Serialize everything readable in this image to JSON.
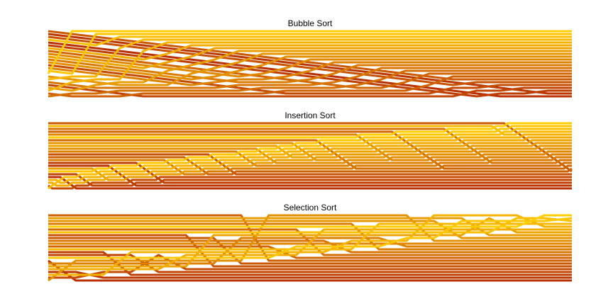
{
  "figure": {
    "panels": [
      {
        "id": "bubble",
        "title": "Bubble Sort",
        "algorithm": "bubble"
      },
      {
        "id": "insertion",
        "title": "Insertion Sort",
        "algorithm": "insertion"
      },
      {
        "id": "selection",
        "title": "Selection Sort",
        "algorithm": "selection"
      }
    ],
    "element_count": 24,
    "color_scale": {
      "low": "#b83000",
      "high": "#ffce00",
      "scheme": "YlOrRd (yellow-orange-red)"
    },
    "axes_visible": false
  },
  "chart_data": [
    {
      "type": "sorting-network",
      "title": "Bubble Sort",
      "algorithm": "bubble",
      "element_count": 24
    },
    {
      "type": "sorting-network",
      "title": "Insertion Sort",
      "algorithm": "insertion",
      "element_count": 24
    },
    {
      "type": "sorting-network",
      "title": "Selection Sort",
      "algorithm": "selection",
      "element_count": 24
    }
  ]
}
